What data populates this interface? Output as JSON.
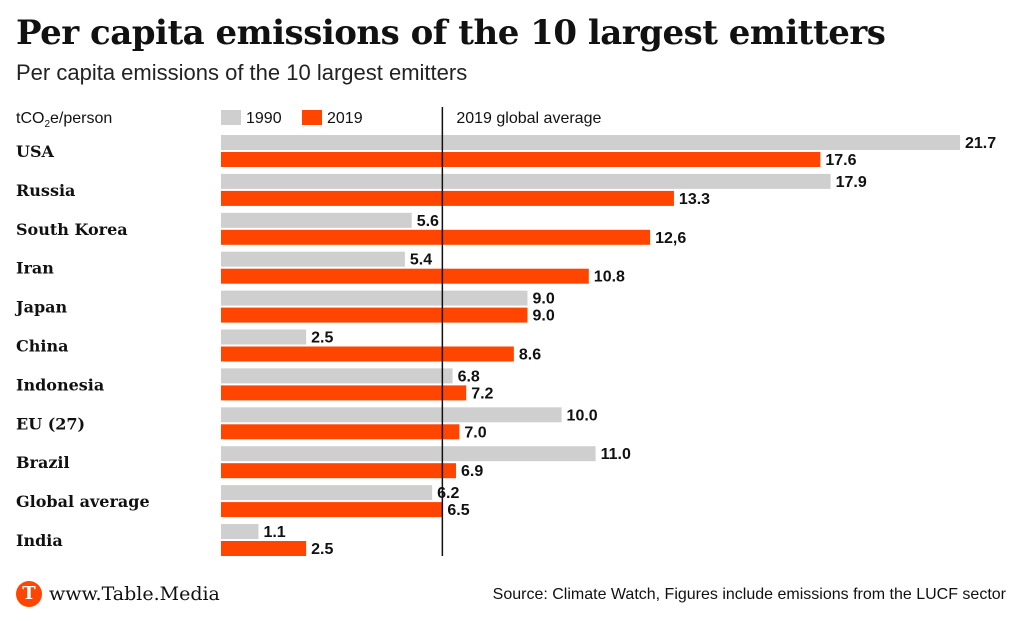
{
  "title": "Per capita emissions of the 10 largest emitters",
  "subtitle": "Per capita emissions of the 10 largest emitters",
  "footer": {
    "logo_letter": "T",
    "site": "www.Table.Media",
    "source": "Source: Climate Watch, Figures include emissions from the LUCF sector"
  },
  "colors": {
    "series_1990": "#cfcfcf",
    "series_2019": "#ff4500",
    "reference_line": "#111111"
  },
  "chart_data": {
    "type": "bar",
    "orientation": "horizontal",
    "unit_label": {
      "prefix": "tCO",
      "subscript": "2",
      "suffix": "e/person"
    },
    "categories": [
      "USA",
      "Russia",
      "South Korea",
      "Iran",
      "Japan",
      "China",
      "Indonesia",
      "EU (27)",
      "Brazil",
      "Global average",
      "India"
    ],
    "series": [
      {
        "name": "1990",
        "values": [
          21.7,
          17.9,
          5.6,
          5.4,
          9.0,
          2.5,
          6.8,
          10.0,
          11.0,
          6.2,
          1.1
        ],
        "labels": [
          "21.7",
          "17.9",
          "5.6",
          "5.4",
          "9.0",
          "2.5",
          "6.8",
          "10.0",
          "11.0",
          "6.2",
          "1.1"
        ]
      },
      {
        "name": "2019",
        "values": [
          17.6,
          13.3,
          12.6,
          10.8,
          9.0,
          8.6,
          7.2,
          7.0,
          6.9,
          6.5,
          2.5
        ],
        "labels": [
          "17.6",
          "13.3",
          "12,6",
          "10.8",
          "9.0",
          "8.6",
          "7.2",
          "7.0",
          "6.9",
          "6.5",
          "2.5"
        ]
      }
    ],
    "reference_line": {
      "label": "2019 global average",
      "value": 6.5
    },
    "xlim": [
      0,
      21.7
    ],
    "legend_position": "top",
    "grid": false
  }
}
